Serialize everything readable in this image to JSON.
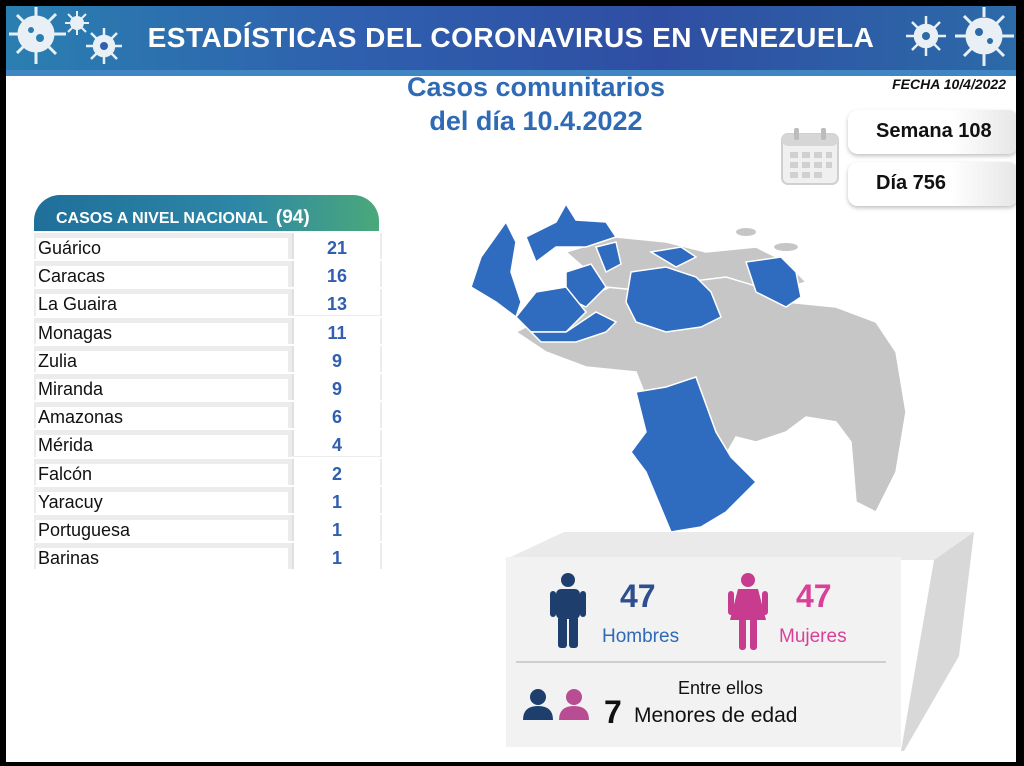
{
  "banner": {
    "title": "ESTADÍSTICAS DEL CORONAVIRUS EN VENEZUELA"
  },
  "heading": {
    "line1": "Casos comunitarios",
    "line2": "del día 10.4.2022"
  },
  "fecha": "FECHA 10/4/2022",
  "semana": "Semana 108",
  "dia": "Día 756",
  "icons": {
    "calendar": "calendar-icon",
    "virus": "virus-icon",
    "man": "man-icon",
    "woman": "woman-icon"
  },
  "table": {
    "title": "CASOS A NIVEL NACIONAL",
    "total": "(94)",
    "rows": [
      {
        "name": "Guárico",
        "value": "21"
      },
      {
        "name": "Caracas",
        "value": "16"
      },
      {
        "name": "La Guaira",
        "value": "13"
      },
      {
        "name": "Monagas",
        "value": "11"
      },
      {
        "name": "Zulia",
        "value": "9"
      },
      {
        "name": "Miranda",
        "value": "9"
      },
      {
        "name": "Amazonas",
        "value": "6"
      },
      {
        "name": "Mérida",
        "value": "4"
      },
      {
        "name": "Falcón",
        "value": "2"
      },
      {
        "name": "Yaracuy",
        "value": "1"
      },
      {
        "name": "Portuguesa",
        "value": "1"
      },
      {
        "name": "Barinas",
        "value": "1"
      }
    ]
  },
  "stats": {
    "men": "47",
    "men_label": "Hombres",
    "women": "47",
    "women_label": "Mujeres",
    "minors_intro": "Entre ellos",
    "minors": "7",
    "minors_label": "Menores de edad"
  },
  "colors": {
    "blue": "#2f6ab5",
    "pink": "#d9409a",
    "navy": "#1e3f6e",
    "map_affected": "#2f6bbf",
    "map_other": "#c6c6c6"
  }
}
